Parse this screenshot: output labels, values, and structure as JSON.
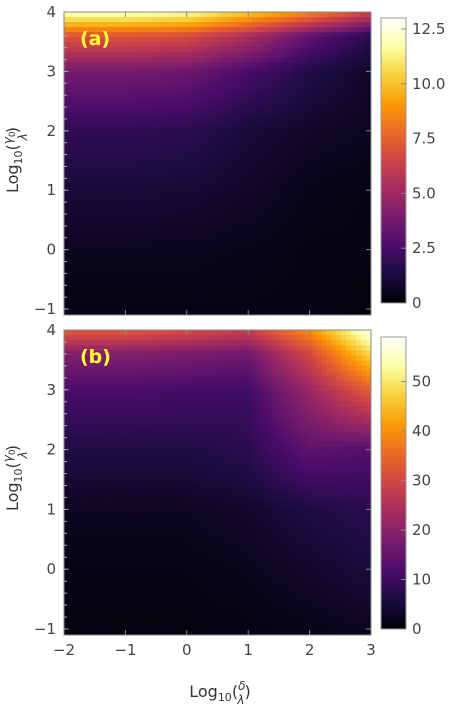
{
  "chart_data": [
    {
      "type": "heatmap",
      "panel_label": "(a)",
      "x": [
        -2,
        -1,
        0,
        1,
        2,
        3
      ],
      "y": [
        -1,
        0,
        1,
        2,
        3,
        4
      ],
      "xlim": [
        -2,
        3
      ],
      "ylim": [
        -1.1,
        4
      ],
      "xticks": [
        "−2",
        "−1",
        "0",
        "1",
        "2",
        "3"
      ],
      "yticks": [
        "−1",
        "0",
        "1",
        "2",
        "3",
        "4"
      ],
      "ylabel": "Log10(γ0/λ)",
      "colorbar": {
        "min": 0,
        "max": 13,
        "ticks": [
          "0",
          "2.5",
          "5.0",
          "7.5",
          "10.0",
          "12.5"
        ],
        "tick_values": [
          0,
          2.5,
          5.0,
          7.5,
          10.0,
          12.5
        ]
      },
      "z": [
        [
          0.1,
          0.1,
          0.1,
          0.1,
          0.1,
          0.05
        ],
        [
          0.2,
          0.2,
          0.2,
          0.15,
          0.1,
          0.1
        ],
        [
          0.5,
          0.5,
          0.45,
          0.3,
          0.15,
          0.1
        ],
        [
          1.0,
          1.0,
          0.9,
          0.5,
          0.3,
          0.2
        ],
        [
          2.5,
          2.5,
          2.3,
          1.5,
          0.7,
          0.3
        ],
        [
          5.8,
          5.8,
          5.5,
          4.0,
          2.0,
          0.8
        ],
        [
          12.0,
          12.0,
          11.5,
          9.5,
          7.5,
          5.0
        ]
      ],
      "z_y": [
        -1,
        0,
        1,
        2,
        3,
        3.6,
        4
      ]
    },
    {
      "type": "heatmap",
      "panel_label": "(b)",
      "x": [
        -2,
        -1,
        0,
        1,
        2,
        3
      ],
      "y": [
        -1,
        0,
        1,
        2,
        3,
        4
      ],
      "xlim": [
        -2,
        3
      ],
      "ylim": [
        -1.1,
        4
      ],
      "xticks": [
        "−2",
        "−1",
        "0",
        "1",
        "2",
        "3"
      ],
      "yticks": [
        "−1",
        "0",
        "1",
        "2",
        "3",
        "4"
      ],
      "xlabel": "Log10(δ/λ)",
      "ylabel": "Log10(γ0/λ)",
      "colorbar": {
        "min": 0,
        "max": 59,
        "ticks": [
          "0",
          "10",
          "20",
          "30",
          "40",
          "50"
        ],
        "tick_values": [
          0,
          10,
          20,
          30,
          40,
          50
        ]
      },
      "z": [
        [
          0.3,
          0.3,
          0.3,
          0.4,
          0.6,
          1.0
        ],
        [
          0.5,
          0.5,
          0.5,
          0.8,
          1.5,
          2.5
        ],
        [
          1.0,
          1.0,
          1.0,
          1.5,
          3.0,
          4.0
        ],
        [
          3.0,
          3.0,
          3.0,
          4.0,
          9.0,
          8.0
        ],
        [
          7.0,
          7.0,
          6.5,
          6.0,
          16.0,
          28.0
        ],
        [
          13.0,
          13.0,
          12.0,
          11.0,
          24.0,
          45.0
        ],
        [
          27.0,
          27.0,
          25.0,
          22.0,
          35.0,
          58.0
        ]
      ],
      "z_y": [
        -1,
        0,
        1,
        2,
        3,
        3.6,
        4
      ]
    }
  ],
  "colormap": [
    "#000004",
    "#1b0c41",
    "#4a0c6b",
    "#781c6d",
    "#a52c60",
    "#cf4446",
    "#ed6925",
    "#fb9b06",
    "#f7d13d",
    "#fcffa4",
    "#ffffff"
  ]
}
